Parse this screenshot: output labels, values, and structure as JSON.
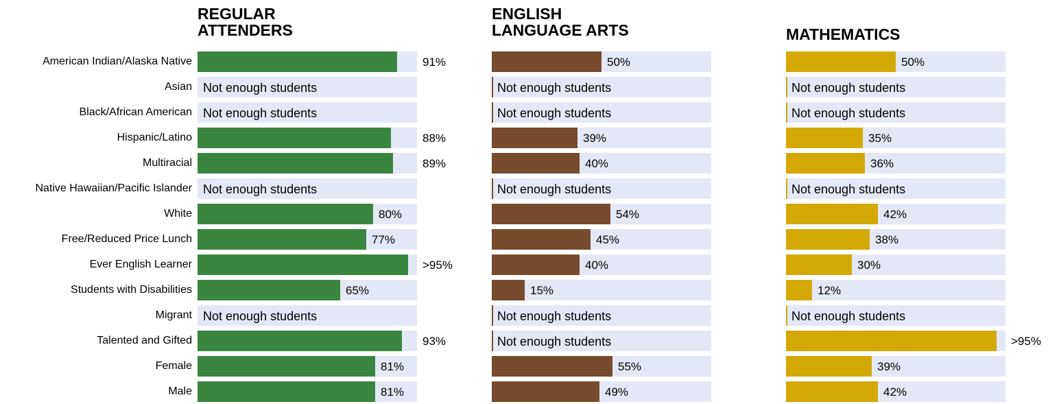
{
  "chart_data": [
    {
      "type": "bar",
      "orientation": "horizontal",
      "title": "REGULAR\nATTENDERS",
      "categories": [
        "American Indian/Alaska Native",
        "Asian",
        "Black/African American",
        "Hispanic/Latino",
        "Multiracial",
        "Native Hawaiian/Pacific Islander",
        "White",
        "Free/Reduced Price Lunch",
        "Ever English Learner",
        "Students with Disabilities",
        "Migrant",
        "Talented and Gifted",
        "Female",
        "Male"
      ],
      "values": [
        91,
        null,
        null,
        88,
        89,
        null,
        80,
        77,
        96,
        65,
        null,
        93,
        81,
        81
      ],
      "labels": [
        "91%",
        "Not enough students",
        "Not enough students",
        "88%",
        "89%",
        "Not enough students",
        "80%",
        "77%",
        ">95%",
        "65%",
        "Not enough students",
        "93%",
        "81%",
        "81%"
      ],
      "xlim": [
        0,
        100
      ],
      "color": "#3a8640",
      "track_color": "#e4e8f6"
    },
    {
      "type": "bar",
      "orientation": "horizontal",
      "title": "ENGLISH\nLANGUAGE ARTS",
      "categories": [
        "American Indian/Alaska Native",
        "Asian",
        "Black/African American",
        "Hispanic/Latino",
        "Multiracial",
        "Native Hawaiian/Pacific Islander",
        "White",
        "Free/Reduced Price Lunch",
        "Ever English Learner",
        "Students with Disabilities",
        "Migrant",
        "Talented and Gifted",
        "Female",
        "Male"
      ],
      "values": [
        50,
        null,
        null,
        39,
        40,
        null,
        54,
        45,
        40,
        15,
        null,
        null,
        55,
        49
      ],
      "labels": [
        "50%",
        "Not enough students",
        "Not enough students",
        "39%",
        "40%",
        "Not enough students",
        "54%",
        "45%",
        "40%",
        "15%",
        "Not enough students",
        "Not enough students",
        "55%",
        "49%"
      ],
      "xlim": [
        0,
        100
      ],
      "color": "#774b2d",
      "track_color": "#e4e8f6"
    },
    {
      "type": "bar",
      "orientation": "horizontal",
      "title": "MATHEMATICS",
      "categories": [
        "American Indian/Alaska Native",
        "Asian",
        "Black/African American",
        "Hispanic/Latino",
        "Multiracial",
        "Native Hawaiian/Pacific Islander",
        "White",
        "Free/Reduced Price Lunch",
        "Ever English Learner",
        "Students with Disabilities",
        "Migrant",
        "Talented and Gifted",
        "Female",
        "Male"
      ],
      "values": [
        50,
        null,
        null,
        35,
        36,
        null,
        42,
        38,
        30,
        12,
        null,
        96,
        39,
        42
      ],
      "labels": [
        "50%",
        "Not enough students",
        "Not enough students",
        "35%",
        "36%",
        "Not enough students",
        "42%",
        "38%",
        "30%",
        "12%",
        "Not enough students",
        ">95%",
        "39%",
        "42%"
      ],
      "xlim": [
        0,
        100
      ],
      "color": "#d4a806",
      "track_color": "#e4e8f6"
    }
  ]
}
